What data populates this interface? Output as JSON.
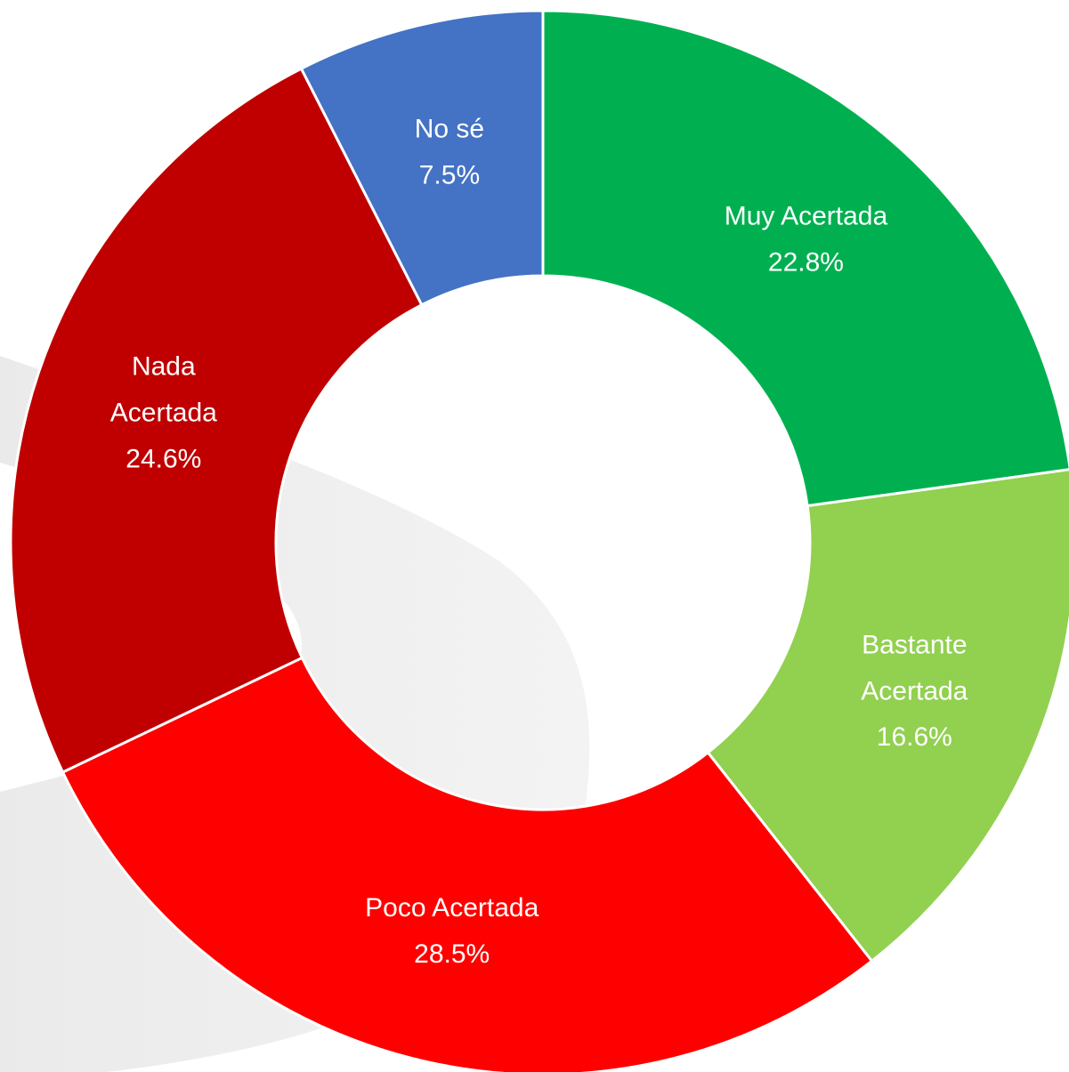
{
  "chart_data": {
    "type": "donut",
    "categories": [
      "Muy Acertada",
      "Bastante Acertada",
      "Poco Acertada",
      "Nada Acertada",
      "No sé"
    ],
    "values": [
      22.8,
      16.6,
      28.5,
      24.6,
      7.5
    ],
    "value_labels": [
      "22.8%",
      "16.6%",
      "28.5%",
      "24.6%",
      "7.5%"
    ],
    "colors": [
      "#00b050",
      "#92d050",
      "#ff0000",
      "#c00000",
      "#4472c4"
    ]
  }
}
